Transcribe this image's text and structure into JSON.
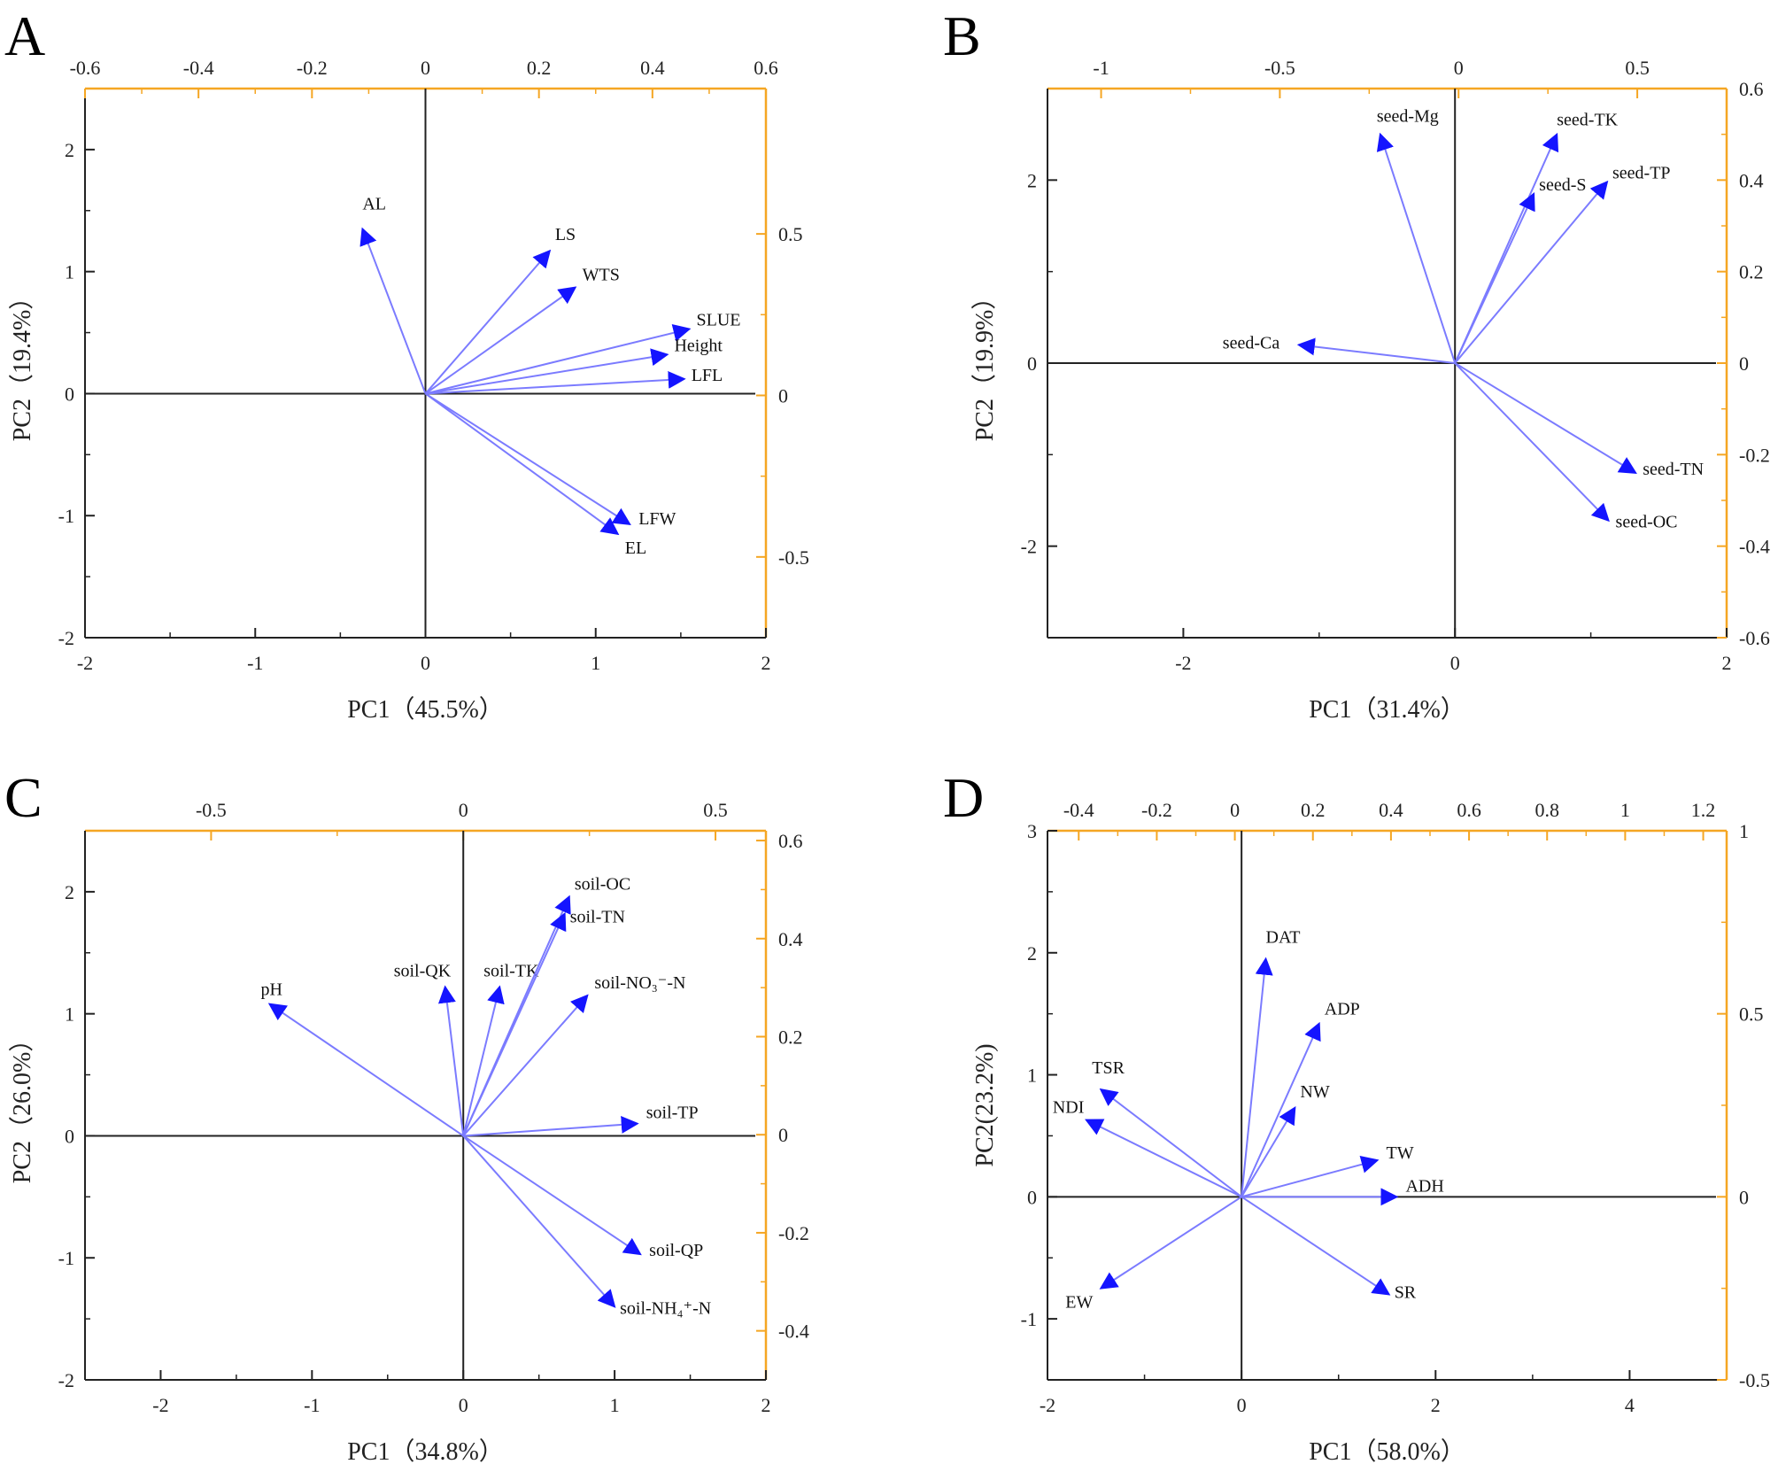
{
  "colors": {
    "axis": "#222222",
    "secondary_axis": "#f5a623",
    "arrow": "#7b7bff",
    "arrowhead": "#1414ff"
  },
  "chart_data": [
    {
      "type": "biplot",
      "panel": "A",
      "xlabel": "PC1（45.5%）",
      "ylabel": "PC2（19.4%）",
      "xlim": [
        -2,
        2
      ],
      "ylim": [
        -2,
        2.5
      ],
      "xticks": [
        -2,
        -1,
        0,
        1,
        2
      ],
      "yticks": [
        -2,
        -1,
        0,
        1,
        2
      ],
      "x2lim": [
        -0.6,
        0.6
      ],
      "x2ticks": [
        -0.6,
        -0.4,
        -0.2,
        0.0,
        0.2,
        0.4,
        0.6
      ],
      "y2lim": [
        -0.75,
        0.95
      ],
      "y2ticks": [
        -0.5,
        0.0,
        0.5
      ],
      "vectors": [
        {
          "label": "AL",
          "x": -0.37,
          "y": 1.35
        },
        {
          "label": "LS",
          "x": 0.73,
          "y": 1.17
        },
        {
          "label": "WTS",
          "x": 0.88,
          "y": 0.87
        },
        {
          "label": "SLUE",
          "x": 1.55,
          "y": 0.53
        },
        {
          "label": "Height",
          "x": 1.42,
          "y": 0.32
        },
        {
          "label": "LFL",
          "x": 1.52,
          "y": 0.12
        },
        {
          "label": "LFW",
          "x": 1.2,
          "y": -1.07
        },
        {
          "label": "EL",
          "x": 1.13,
          "y": -1.15
        }
      ]
    },
    {
      "type": "biplot",
      "panel": "B",
      "xlabel": "PC1（31.4%）",
      "ylabel": "PC2（19.9%）",
      "xlim": [
        -3,
        2
      ],
      "ylim": [
        -3,
        3
      ],
      "xticks": [
        -2,
        0,
        2
      ],
      "yticks": [
        -2,
        0,
        2
      ],
      "x2lim": [
        -1.15,
        0.75
      ],
      "x2ticks": [
        -1.0,
        -0.5,
        0.0,
        0.5
      ],
      "y2lim": [
        -0.6,
        0.6
      ],
      "y2ticks": [
        -0.6,
        -0.4,
        -0.2,
        0.0,
        0.2,
        0.4,
        0.6
      ],
      "vectors": [
        {
          "label": "seed-Mg",
          "x": -0.55,
          "y": 2.5
        },
        {
          "label": "seed-TK",
          "x": 0.75,
          "y": 2.5
        },
        {
          "label": "seed-S",
          "x": 0.58,
          "y": 1.85
        },
        {
          "label": "seed-TP",
          "x": 1.12,
          "y": 1.98
        },
        {
          "label": "seed-Ca",
          "x": -1.15,
          "y": 0.2
        },
        {
          "label": "seed-TN",
          "x": 1.33,
          "y": -1.2
        },
        {
          "label": "seed-OC",
          "x": 1.13,
          "y": -1.72
        }
      ]
    },
    {
      "type": "biplot",
      "panel": "C",
      "xlabel": "PC1（34.8%）",
      "ylabel": "PC2（26.0%）",
      "xlim": [
        -2.5,
        2
      ],
      "ylim": [
        -2,
        2.5
      ],
      "xticks": [
        -2,
        -1,
        0,
        1,
        2
      ],
      "yticks": [
        -2,
        -1,
        0,
        1,
        2
      ],
      "x2lim": [
        -0.75,
        0.6
      ],
      "x2ticks": [
        -0.5,
        0.0,
        0.5
      ],
      "y2lim": [
        -0.5,
        0.62
      ],
      "y2ticks": [
        -0.4,
        -0.2,
        0.0,
        0.2,
        0.4,
        0.6
      ],
      "vectors": [
        {
          "label": "pH",
          "x": -1.28,
          "y": 1.08
        },
        {
          "label": "soil-QK",
          "x": -0.12,
          "y": 1.22
        },
        {
          "label": "soil-TK",
          "x": 0.24,
          "y": 1.22
        },
        {
          "label": "soil-OC",
          "x": 0.7,
          "y": 1.96
        },
        {
          "label": "soil-TN",
          "x": 0.67,
          "y": 1.82
        },
        {
          "label": "soil-NO₃⁻-N",
          "x": 0.82,
          "y": 1.15
        },
        {
          "label": "soil-TP",
          "x": 1.15,
          "y": 0.1
        },
        {
          "label": "soil-QP",
          "x": 1.17,
          "y": -0.97
        },
        {
          "label": "soil-NH₄⁺-N",
          "x": 1.0,
          "y": -1.4
        }
      ]
    },
    {
      "type": "biplot",
      "panel": "D",
      "xlabel": "PC1（58.0%）",
      "ylabel": "PC2(23.2%)",
      "xlim": [
        -2,
        5
      ],
      "ylim": [
        -1.5,
        3
      ],
      "xticks": [
        -2,
        0,
        2,
        4
      ],
      "yticks": [
        -1,
        0,
        1,
        2,
        3
      ],
      "x2lim": [
        -0.48,
        1.26
      ],
      "x2ticks": [
        -0.4,
        -0.2,
        0.0,
        0.2,
        0.4,
        0.6,
        0.8,
        1.0,
        1.2
      ],
      "y2lim": [
        -0.5,
        1.0
      ],
      "y2ticks": [
        -0.5,
        0.0,
        0.5,
        1.0
      ],
      "vectors": [
        {
          "label": "DAT",
          "x": 0.25,
          "y": 1.95
        },
        {
          "label": "ADP",
          "x": 0.8,
          "y": 1.42
        },
        {
          "label": "NW",
          "x": 0.55,
          "y": 0.73
        },
        {
          "label": "TW",
          "x": 1.4,
          "y": 0.3
        },
        {
          "label": "ADH",
          "x": 1.6,
          "y": 0.0
        },
        {
          "label": "SR",
          "x": 1.52,
          "y": -0.8
        },
        {
          "label": "TSR",
          "x": -1.45,
          "y": 0.88
        },
        {
          "label": "NDI",
          "x": -1.6,
          "y": 0.63
        },
        {
          "label": "EW",
          "x": -1.45,
          "y": -0.75
        }
      ]
    }
  ]
}
